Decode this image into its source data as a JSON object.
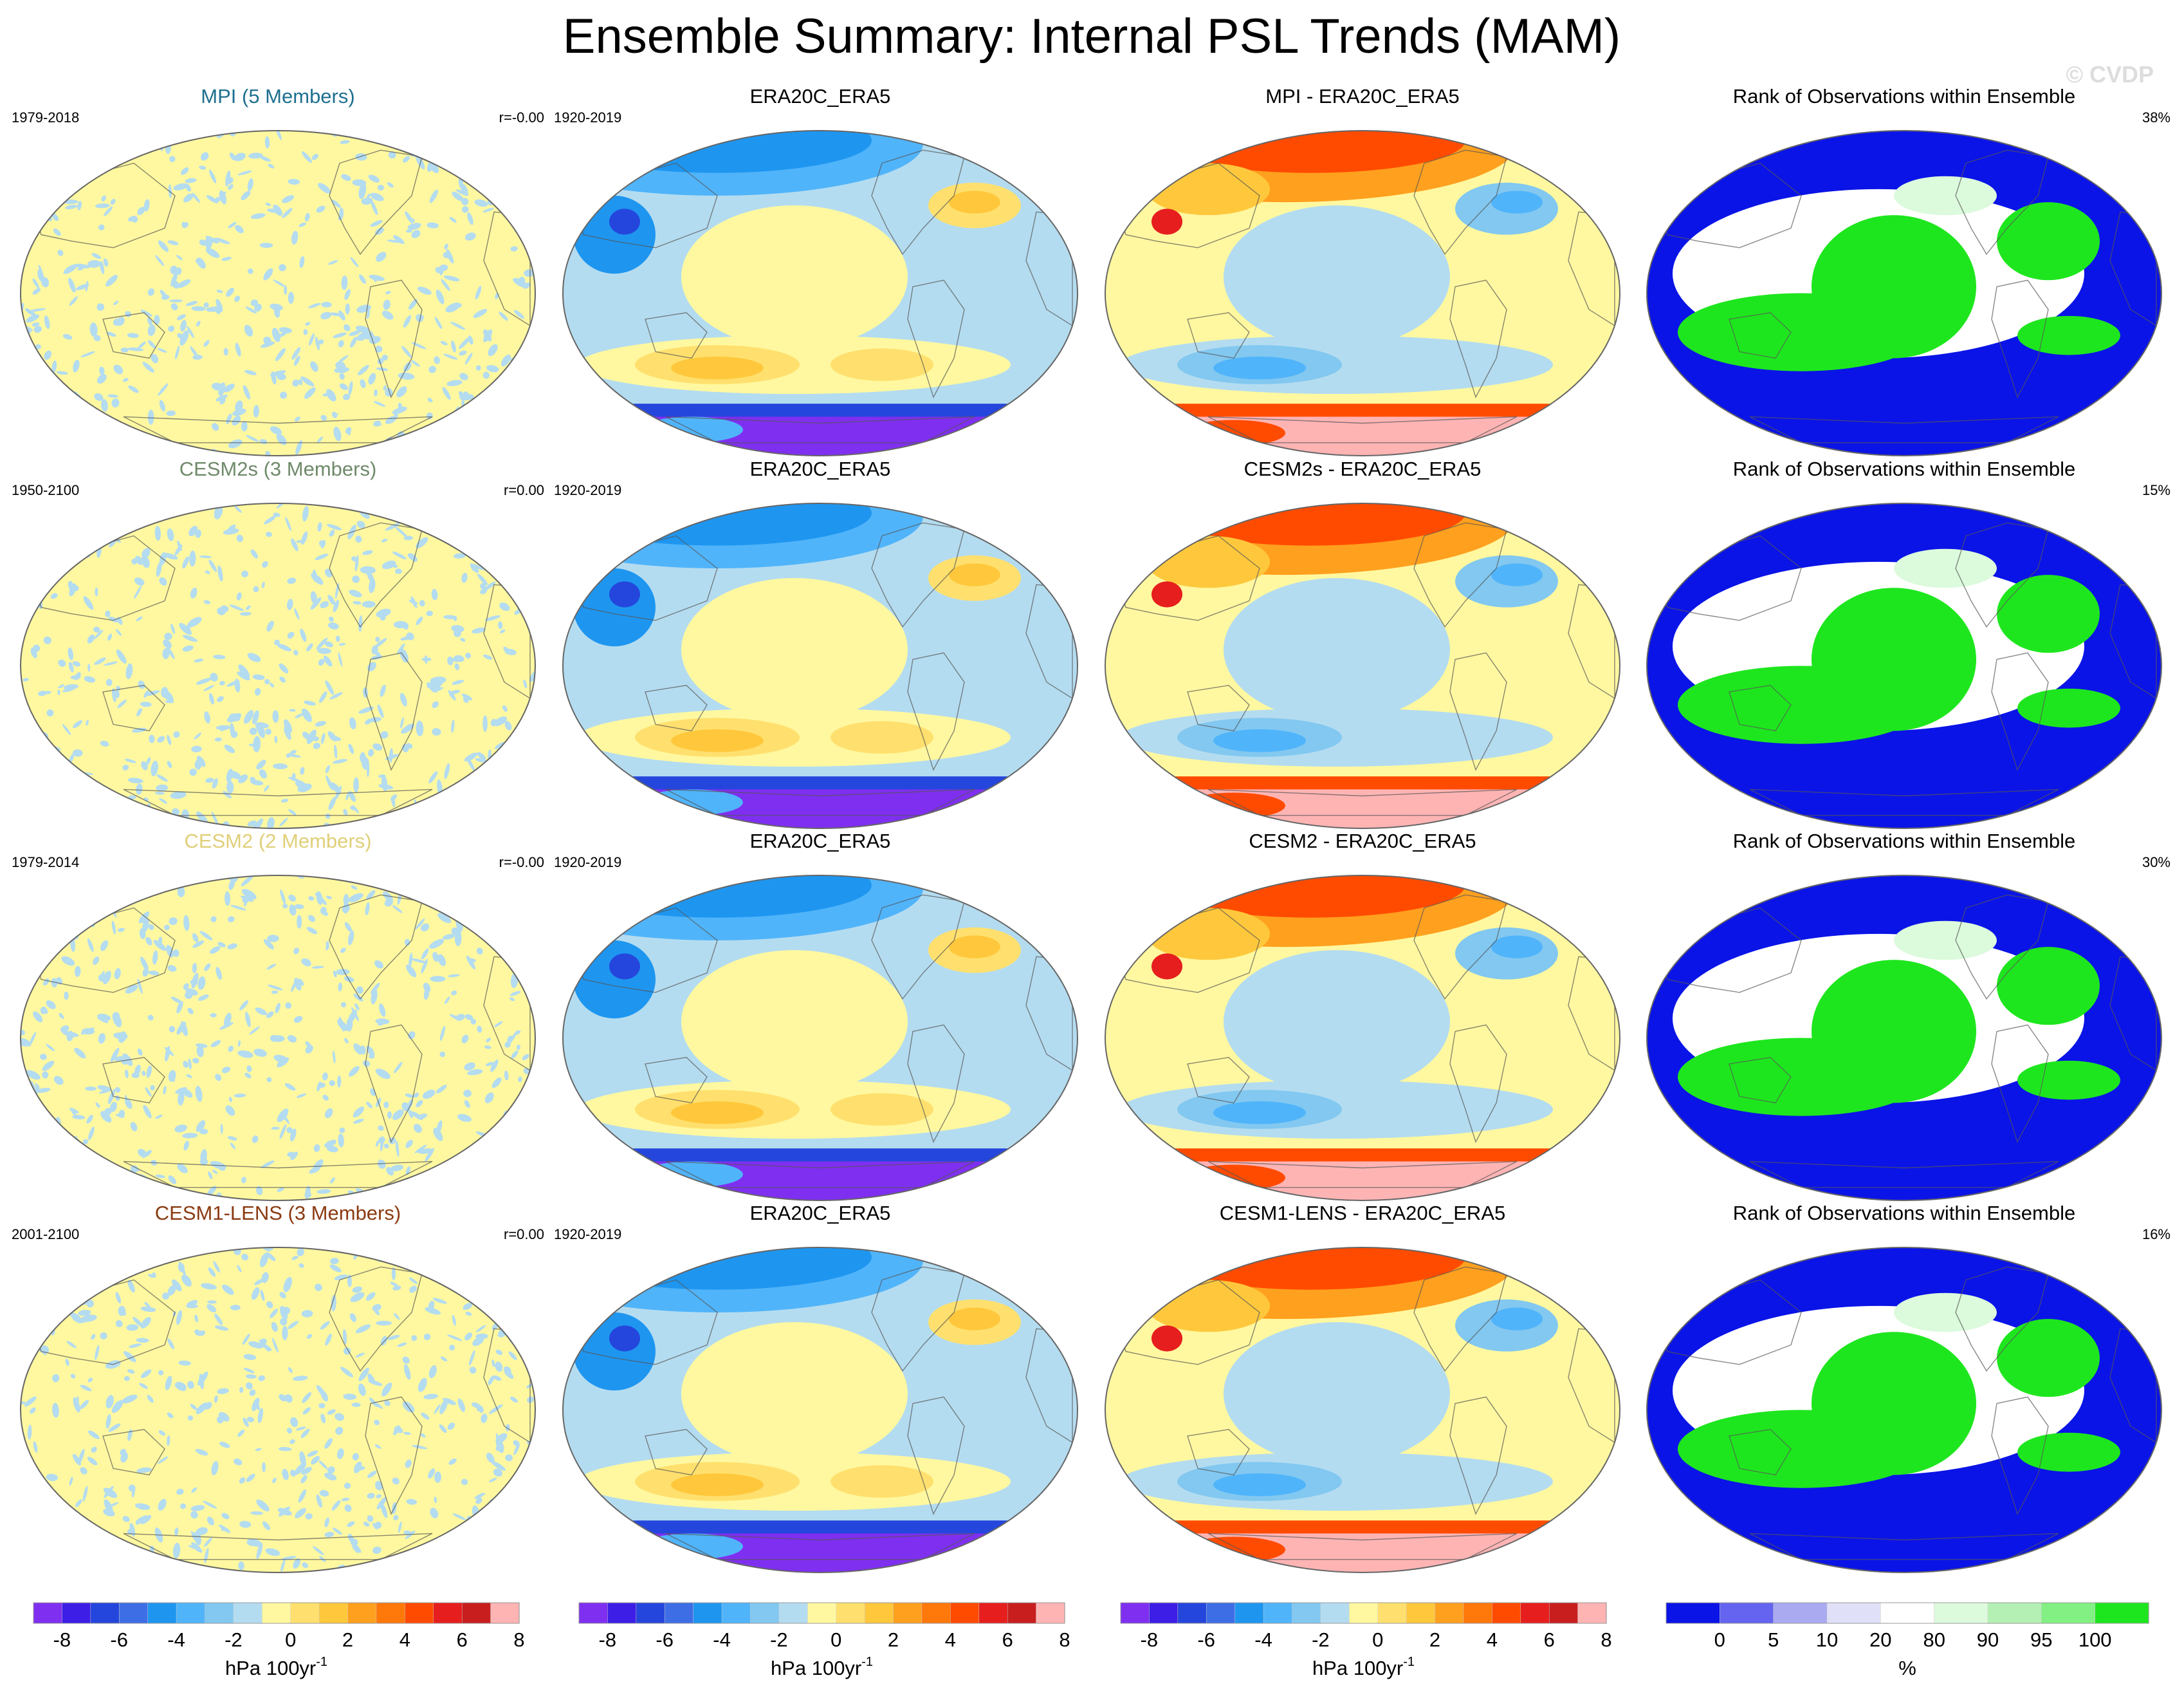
{
  "title": "Ensemble Summary: Internal PSL Trends (MAM)",
  "watermark": "© CVDP",
  "colors": {
    "psl_palette": [
      "#7f2ff0",
      "#3c1ee6",
      "#2546dc",
      "#3e6ee6",
      "#1e96f0",
      "#50b4fa",
      "#82c8f0",
      "#b4dcf0",
      "#fff8a0",
      "#ffe06e",
      "#ffc83c",
      "#ffa01e",
      "#ff780a",
      "#ff4b00",
      "#e61e1e",
      "#c81e1e",
      "#ffb4b4"
    ],
    "rank_palette": [
      "#0a14e6",
      "#6464f0",
      "#aaaaf0",
      "#e0e0f8",
      "#ffffff",
      "#dcfadc",
      "#b4f0b4",
      "#82f082",
      "#1ee61e"
    ],
    "map_border": "#666666",
    "coast": "#555555"
  },
  "rows": [
    {
      "model": {
        "title": "MPI (5 Members)",
        "title_color": "#1e6f8f",
        "period": "1979-2018",
        "stat": "r=-0.00"
      },
      "obs": {
        "title": "ERA20C_ERA5",
        "period": "1920-2019"
      },
      "diff": {
        "title": "MPI - ERA20C_ERA5"
      },
      "rank": {
        "title": "Rank of Observations within Ensemble",
        "percent": "38%"
      }
    },
    {
      "model": {
        "title": "CESM2s (3 Members)",
        "title_color": "#6f8a6a",
        "period": "1950-2100",
        "stat": "r=0.00"
      },
      "obs": {
        "title": "ERA20C_ERA5",
        "period": "1920-2019"
      },
      "diff": {
        "title": "CESM2s - ERA20C_ERA5"
      },
      "rank": {
        "title": "Rank of Observations within Ensemble",
        "percent": "15%"
      }
    },
    {
      "model": {
        "title": "CESM2 (2 Members)",
        "title_color": "#e0cf78",
        "period": "1979-2014",
        "stat": "r=-0.00"
      },
      "obs": {
        "title": "ERA20C_ERA5",
        "period": "1920-2019"
      },
      "diff": {
        "title": "CESM2 - ERA20C_ERA5"
      },
      "rank": {
        "title": "Rank of Observations within Ensemble",
        "percent": "30%"
      }
    },
    {
      "model": {
        "title": "CESM1-LENS (3 Members)",
        "title_color": "#8b3a12",
        "period": "2001-2100",
        "stat": "r=0.00"
      },
      "obs": {
        "title": "ERA20C_ERA5",
        "period": "1920-2019"
      },
      "diff": {
        "title": "CESM1-LENS - ERA20C_ERA5"
      },
      "rank": {
        "title": "Rank of Observations within Ensemble",
        "percent": "16%"
      }
    }
  ],
  "colorbars": [
    {
      "labels": [
        "-8",
        "-6",
        "-4",
        "-2",
        "0",
        "2",
        "4",
        "6",
        "8"
      ],
      "units": "hPa 100yr",
      "units_sup": "-1"
    },
    {
      "labels": [
        "-8",
        "-6",
        "-4",
        "-2",
        "0",
        "2",
        "4",
        "6",
        "8"
      ],
      "units": "hPa 100yr",
      "units_sup": "-1"
    },
    {
      "labels": [
        "-8",
        "-6",
        "-4",
        "-2",
        "0",
        "2",
        "4",
        "6",
        "8"
      ],
      "units": "hPa 100yr",
      "units_sup": "-1"
    },
    {
      "labels": [
        "0",
        "5",
        "10",
        "20",
        "80",
        "90",
        "95",
        "100"
      ],
      "units": "%",
      "units_sup": ""
    }
  ]
}
